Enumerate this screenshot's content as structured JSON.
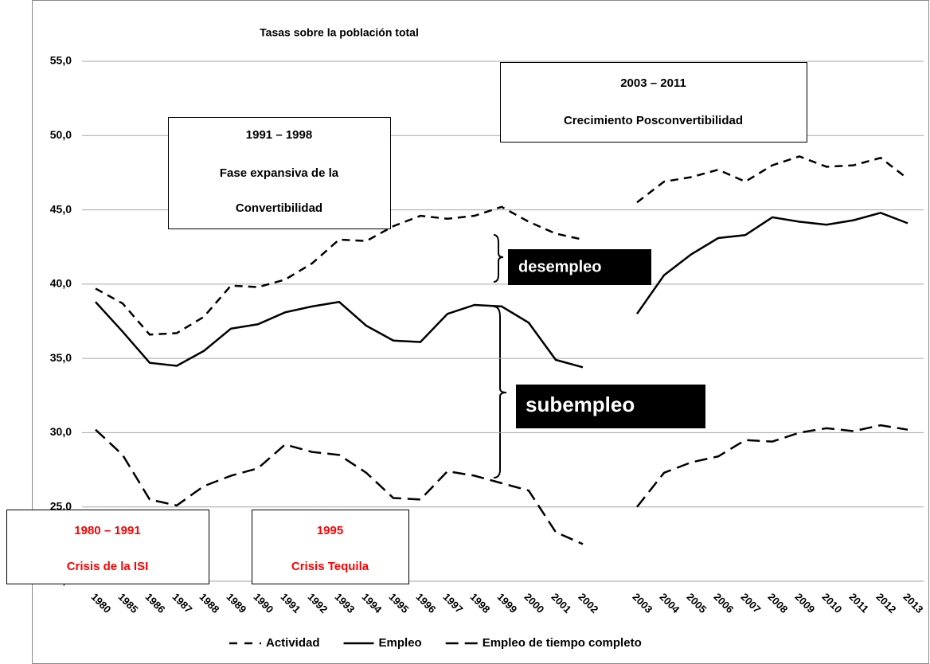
{
  "chart_data": {
    "type": "line",
    "title": "Tasas sobre la población total",
    "categories": [
      "1980",
      "1985",
      "1986",
      "1987",
      "1988",
      "1989",
      "1990",
      "1991",
      "1992",
      "1993",
      "1994",
      "1995",
      "1996",
      "1997",
      "1998",
      "1999",
      "2000",
      "2001",
      "2002",
      null,
      "2003",
      "2004",
      "2005",
      "2006",
      "2007",
      "2008",
      "2009",
      "2010",
      "2011",
      "2012",
      "2013"
    ],
    "series": [
      {
        "name": "Actividad",
        "color": "#000000",
        "style": "dashed",
        "values": [
          39.7,
          38.7,
          36.6,
          36.7,
          37.8,
          39.9,
          39.8,
          40.3,
          41.4,
          43.0,
          42.9,
          43.9,
          44.6,
          44.4,
          44.6,
          45.2,
          44.2,
          43.4,
          43.0,
          null,
          45.5,
          46.9,
          47.2,
          47.7,
          46.9,
          48.0,
          48.6,
          47.9,
          48.0,
          48.5,
          47.1
        ]
      },
      {
        "name": "Empleo",
        "color": "#000000",
        "style": "solid",
        "values": [
          38.8,
          36.8,
          34.7,
          34.5,
          35.5,
          37.0,
          37.3,
          38.1,
          38.5,
          38.8,
          37.2,
          36.2,
          36.1,
          38.0,
          38.6,
          38.5,
          37.4,
          34.9,
          34.4,
          null,
          38.0,
          40.6,
          42.0,
          43.1,
          43.3,
          44.5,
          44.2,
          44.0,
          44.3,
          44.8,
          44.1
        ]
      },
      {
        "name": "Empleo de tiempo completo",
        "color": "#000000",
        "style": "long-dashed",
        "values": [
          30.2,
          28.5,
          25.5,
          25.1,
          26.4,
          27.1,
          27.6,
          29.2,
          28.7,
          28.5,
          27.3,
          25.6,
          25.5,
          27.4,
          27.1,
          26.6,
          26.1,
          23.3,
          22.5,
          null,
          25.0,
          27.3,
          28.0,
          28.4,
          29.5,
          29.4,
          30.0,
          30.3,
          30.1,
          30.5,
          30.2
        ]
      }
    ],
    "ylim": [
      20,
      55
    ],
    "yticks": [
      {
        "value": 20,
        "label": "20,0"
      },
      {
        "value": 25,
        "label": "25,0"
      },
      {
        "value": 30,
        "label": "30,0"
      },
      {
        "value": 35,
        "label": "35,0"
      },
      {
        "value": 40,
        "label": "40,0"
      },
      {
        "value": 45,
        "label": "45,0"
      },
      {
        "value": 50,
        "label": "50,0"
      },
      {
        "value": 55,
        "label": "55,0"
      }
    ],
    "grid": true,
    "legend": "bottom",
    "annotations": [
      {
        "lines": [
          "1991 – 1998",
          "Fase expansiva de la",
          "Convertibilidad"
        ],
        "color": "#000000"
      },
      {
        "lines": [
          "2003 – 2011",
          "Crecimiento Posconvertibilidad"
        ],
        "color": "#000000"
      },
      {
        "lines": [
          "1980 – 1991",
          "Crisis de la ISI"
        ],
        "color": "#ff0000"
      },
      {
        "lines": [
          "1995",
          "Crisis Tequila"
        ],
        "color": "#ff0000"
      },
      {
        "lines": [
          "desempleo"
        ],
        "color": "#ffffff"
      },
      {
        "lines": [
          "subempleo"
        ],
        "color": "#ffffff"
      }
    ]
  }
}
